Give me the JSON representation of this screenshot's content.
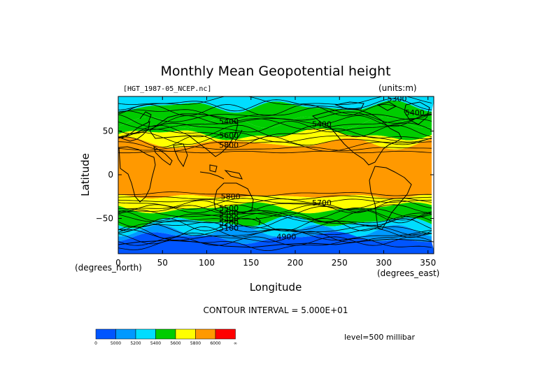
{
  "chart_data": {
    "type": "heatmap",
    "title": "Monthly Mean Geopotential height",
    "file_label": "[HGT_1987-05_NCEP.nc]",
    "units_label": "(units:m)",
    "xlabel": "Longitude",
    "ylabel": "Latitude",
    "x_unit_label": "(degrees_east)",
    "y_unit_label": "(degrees_north)",
    "xlim": [
      0,
      357.5
    ],
    "ylim": [
      -90,
      90
    ],
    "x_ticks": [
      0,
      50,
      100,
      150,
      200,
      250,
      300,
      350
    ],
    "y_ticks": [
      50,
      0,
      -50
    ],
    "y_tick_labels": [
      "50",
      "0",
      "−50"
    ],
    "contour_interval_label": "CONTOUR INTERVAL = 5.000E+01",
    "level_label": "level=500 millibar",
    "contour_labels": [
      {
        "text": "5300",
        "lon": 315,
        "lat": 84
      },
      {
        "text": "5400",
        "lon": 335,
        "lat": 68
      },
      {
        "text": "5400",
        "lon": 125,
        "lat": 58
      },
      {
        "text": "5400",
        "lon": 230,
        "lat": 55
      },
      {
        "text": "5600",
        "lon": 125,
        "lat": 42
      },
      {
        "text": "5800",
        "lon": 125,
        "lat": 31
      },
      {
        "text": "5800",
        "lon": 127,
        "lat": -28
      },
      {
        "text": "5700",
        "lon": 230,
        "lat": -35
      },
      {
        "text": "5500",
        "lon": 125,
        "lat": -41
      },
      {
        "text": "5400",
        "lon": 125,
        "lat": -47
      },
      {
        "text": "5300",
        "lon": 125,
        "lat": -53
      },
      {
        "text": "5200",
        "lon": 125,
        "lat": -58
      },
      {
        "text": "5100",
        "lon": 125,
        "lat": -64
      },
      {
        "text": "4900",
        "lon": 190,
        "lat": -74
      }
    ],
    "bands": [
      {
        "lat_top": 90,
        "lat_bottom": 78,
        "color_index": 2
      },
      {
        "lat_top": 78,
        "lat_bottom": 60,
        "color_index": 3
      },
      {
        "lat_top": 60,
        "lat_bottom": 46,
        "color_index": 3
      },
      {
        "lat_top": 46,
        "lat_bottom": 36,
        "color_index": 4
      },
      {
        "lat_top": 36,
        "lat_bottom": -25,
        "color_index": 5
      },
      {
        "lat_top": -25,
        "lat_bottom": -38,
        "color_index": 4
      },
      {
        "lat_top": -38,
        "lat_bottom": -54,
        "color_index": 3
      },
      {
        "lat_top": -54,
        "lat_bottom": -64,
        "color_index": 2
      },
      {
        "lat_top": -64,
        "lat_bottom": -72,
        "color_index": 1
      },
      {
        "lat_top": -72,
        "lat_bottom": -90,
        "color_index": 0
      }
    ]
  },
  "colorbar": {
    "colors": [
      "#0055ff",
      "#0099ff",
      "#00ddff",
      "#00cc00",
      "#ffff00",
      "#ff9900",
      "#ff0000"
    ],
    "tick_labels": [
      "0",
      "5000",
      "5200",
      "5400",
      "5600",
      "5800",
      "6000",
      "∞"
    ]
  }
}
